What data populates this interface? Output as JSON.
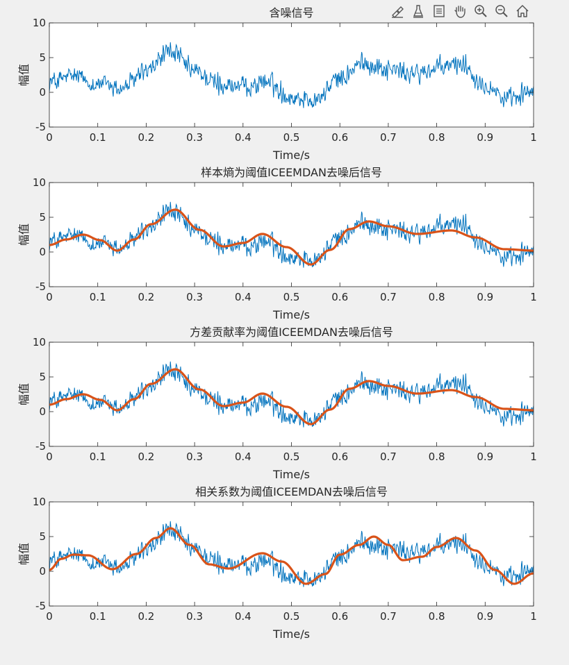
{
  "toolbar": {
    "icons": [
      "brush-icon",
      "colorbar-icon",
      "legend-icon",
      "pan-icon",
      "zoom-in-icon",
      "zoom-out-icon",
      "home-icon"
    ]
  },
  "colors": {
    "noisy": "#0072BD",
    "denoised": "#D95319",
    "axes_bg": "#ffffff",
    "figure_bg": "#f0f0f0"
  },
  "chart_data": [
    {
      "type": "line",
      "title": "含噪信号",
      "xlabel": "Time/s",
      "ylabel": "幅值",
      "xlim": [
        0,
        1
      ],
      "ylim": [
        -5,
        10
      ],
      "xticks": [
        "0",
        "0.1",
        "0.2",
        "0.3",
        "0.4",
        "0.5",
        "0.6",
        "0.7",
        "0.8",
        "0.9",
        "1"
      ],
      "yticks": [
        "-5",
        "0",
        "5",
        "10"
      ],
      "grid": false,
      "series": [
        {
          "role": "noisy",
          "x": [
            0,
            0.05,
            0.1,
            0.15,
            0.2,
            0.25,
            0.3,
            0.35,
            0.4,
            0.45,
            0.5,
            0.55,
            0.6,
            0.65,
            0.7,
            0.75,
            0.8,
            0.85,
            0.9,
            0.95,
            1
          ],
          "values": [
            1.5,
            2.3,
            1.2,
            0.6,
            3.0,
            5.9,
            3.0,
            1.2,
            0.8,
            1.5,
            -0.7,
            -1.0,
            2.0,
            4.2,
            3.4,
            2.6,
            3.4,
            4.2,
            1.2,
            -1.2,
            0.3
          ]
        }
      ]
    },
    {
      "type": "line",
      "title": "样本熵为阈值ICEEMDAN去噪后信号",
      "xlabel": "Time/s",
      "ylabel": "幅值",
      "xlim": [
        0,
        1
      ],
      "ylim": [
        -5,
        10
      ],
      "xticks": [
        "0",
        "0.1",
        "0.2",
        "0.3",
        "0.4",
        "0.5",
        "0.6",
        "0.7",
        "0.8",
        "0.9",
        "1"
      ],
      "yticks": [
        "-5",
        "0",
        "5",
        "10"
      ],
      "grid": false,
      "series": [
        {
          "role": "noisy",
          "x": [
            0,
            0.05,
            0.1,
            0.15,
            0.2,
            0.25,
            0.3,
            0.35,
            0.4,
            0.45,
            0.5,
            0.55,
            0.6,
            0.65,
            0.7,
            0.75,
            0.8,
            0.85,
            0.9,
            0.95,
            1
          ],
          "values": [
            1.5,
            2.3,
            1.2,
            0.6,
            3.0,
            5.9,
            3.0,
            1.2,
            0.8,
            1.5,
            -0.7,
            -1.0,
            2.0,
            4.2,
            3.4,
            2.6,
            3.4,
            4.2,
            1.2,
            -1.2,
            0.3
          ]
        },
        {
          "role": "denoised",
          "x": [
            0,
            0.035,
            0.07,
            0.105,
            0.14,
            0.175,
            0.21,
            0.26,
            0.31,
            0.36,
            0.4,
            0.44,
            0.49,
            0.54,
            0.58,
            0.62,
            0.66,
            0.7,
            0.76,
            0.83,
            0.88,
            0.94,
            1
          ],
          "values": [
            1.0,
            1.8,
            2.5,
            1.7,
            0.2,
            1.8,
            4.0,
            6.1,
            3.2,
            0.8,
            1.3,
            2.6,
            0.7,
            -1.8,
            0.3,
            3.3,
            4.4,
            3.7,
            2.6,
            3.1,
            2.1,
            0.4,
            0.2
          ]
        }
      ]
    },
    {
      "type": "line",
      "title": "方差贡献率为阈值ICEEMDAN去噪后信号",
      "xlabel": "Time/s",
      "ylabel": "幅值",
      "xlim": [
        0,
        1
      ],
      "ylim": [
        -5,
        10
      ],
      "xticks": [
        "0",
        "0.1",
        "0.2",
        "0.3",
        "0.4",
        "0.5",
        "0.6",
        "0.7",
        "0.8",
        "0.9",
        "1"
      ],
      "yticks": [
        "-5",
        "0",
        "5",
        "10"
      ],
      "grid": false,
      "series": [
        {
          "role": "noisy",
          "x": [
            0,
            0.05,
            0.1,
            0.15,
            0.2,
            0.25,
            0.3,
            0.35,
            0.4,
            0.45,
            0.5,
            0.55,
            0.6,
            0.65,
            0.7,
            0.75,
            0.8,
            0.85,
            0.9,
            0.95,
            1
          ],
          "values": [
            1.5,
            2.3,
            1.2,
            0.6,
            3.0,
            5.9,
            3.0,
            1.2,
            0.8,
            1.5,
            -0.7,
            -1.0,
            2.0,
            4.2,
            3.4,
            2.6,
            3.4,
            4.2,
            1.2,
            -1.2,
            0.3
          ]
        },
        {
          "role": "denoised",
          "x": [
            0,
            0.035,
            0.07,
            0.105,
            0.14,
            0.175,
            0.21,
            0.26,
            0.31,
            0.36,
            0.4,
            0.44,
            0.49,
            0.54,
            0.58,
            0.62,
            0.66,
            0.7,
            0.76,
            0.83,
            0.88,
            0.94,
            1
          ],
          "values": [
            1.0,
            1.8,
            2.5,
            1.7,
            0.2,
            1.8,
            4.0,
            6.1,
            3.2,
            0.8,
            1.3,
            2.6,
            0.7,
            -1.8,
            0.3,
            3.3,
            4.4,
            3.7,
            2.6,
            3.1,
            2.1,
            0.4,
            0.2
          ]
        }
      ]
    },
    {
      "type": "line",
      "title": "相关系数为阈值ICEEMDAN去噪后信号",
      "xlabel": "Time/s",
      "ylabel": "幅值",
      "xlim": [
        0,
        1
      ],
      "ylim": [
        -5,
        10
      ],
      "xticks": [
        "0",
        "0.1",
        "0.2",
        "0.3",
        "0.4",
        "0.5",
        "0.6",
        "0.7",
        "0.8",
        "0.9",
        "1"
      ],
      "yticks": [
        "-5",
        "0",
        "5",
        "10"
      ],
      "grid": false,
      "series": [
        {
          "role": "noisy",
          "x": [
            0,
            0.05,
            0.1,
            0.15,
            0.2,
            0.25,
            0.3,
            0.35,
            0.4,
            0.45,
            0.5,
            0.55,
            0.6,
            0.65,
            0.7,
            0.75,
            0.8,
            0.85,
            0.9,
            0.95,
            1
          ],
          "values": [
            1.5,
            2.3,
            1.2,
            0.6,
            3.0,
            5.9,
            3.0,
            1.2,
            0.8,
            1.5,
            -0.7,
            -1.0,
            2.0,
            4.2,
            3.4,
            2.6,
            3.4,
            4.2,
            1.2,
            -1.2,
            0.3
          ]
        },
        {
          "role": "denoised",
          "x": [
            0,
            0.025,
            0.05,
            0.08,
            0.13,
            0.18,
            0.22,
            0.25,
            0.29,
            0.33,
            0.37,
            0.44,
            0.48,
            0.53,
            0.57,
            0.6,
            0.64,
            0.67,
            0.7,
            0.73,
            0.77,
            0.8,
            0.84,
            0.88,
            0.92,
            0.96,
            1
          ],
          "values": [
            0.2,
            1.8,
            2.4,
            2.3,
            0.3,
            2.5,
            4.8,
            6.2,
            3.8,
            1.0,
            0.4,
            2.6,
            1.4,
            -1.8,
            -0.4,
            2.4,
            3.8,
            5.0,
            3.8,
            1.6,
            2.1,
            3.5,
            4.8,
            3.0,
            0.2,
            -1.8,
            -0.3
          ]
        }
      ]
    }
  ]
}
